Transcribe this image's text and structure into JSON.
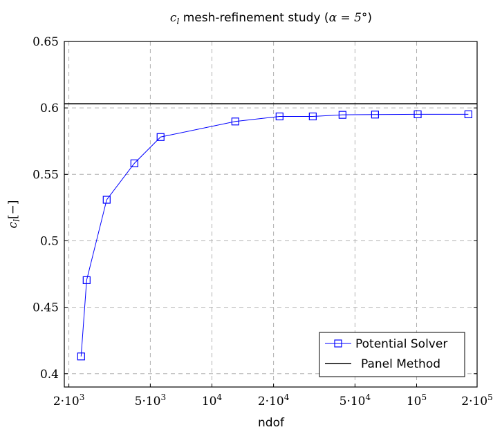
{
  "chart_data": {
    "type": "line",
    "title_prefix": "c",
    "title_sub": "l",
    "title_main": " mesh-refinement study (",
    "title_alpha": "α = 5°",
    "title_close": ")",
    "xlabel": "ndof",
    "ylabel": "c",
    "ylabel_sub": "l",
    "ylabel_unit": "[−]",
    "xscale": "log",
    "xlim": [
      1900,
      197500
    ],
    "ylim": [
      0.39,
      0.65
    ],
    "grid": true,
    "legend_position": "bottom-right",
    "xticks": [
      {
        "value": 2000,
        "base": "2·10",
        "exp": "3"
      },
      {
        "value": 5000,
        "base": "5·10",
        "exp": "3"
      },
      {
        "value": 10000,
        "base": "10",
        "exp": "4"
      },
      {
        "value": 20000,
        "base": "2·10",
        "exp": "4"
      },
      {
        "value": 50000,
        "base": "5·10",
        "exp": "4"
      },
      {
        "value": 100000,
        "base": "10",
        "exp": "5"
      },
      {
        "value": 200000,
        "base": "2·10",
        "exp": "5"
      }
    ],
    "yticks": [
      {
        "value": 0.4,
        "label": "0.4"
      },
      {
        "value": 0.45,
        "label": "0.45"
      },
      {
        "value": 0.5,
        "label": "0.5"
      },
      {
        "value": 0.55,
        "label": "0.55"
      },
      {
        "value": 0.6,
        "label": "0.6"
      },
      {
        "value": 0.65,
        "label": "0.65"
      }
    ],
    "series": [
      {
        "name": "Potential Solver",
        "color": "#0000ff",
        "marker": "square",
        "x": [
          2295,
          2443,
          3061,
          4178,
          5612,
          13010,
          21400,
          31100,
          43450,
          62650,
          101200,
          179000
        ],
        "y": [
          0.413,
          0.4704,
          0.5309,
          0.5583,
          0.5781,
          0.5898,
          0.5936,
          0.5936,
          0.5948,
          0.595,
          0.5952,
          0.5952
        ]
      },
      {
        "name": "Panel Method",
        "color": "#000000",
        "marker": "none",
        "constant_y": 0.6031
      }
    ]
  }
}
